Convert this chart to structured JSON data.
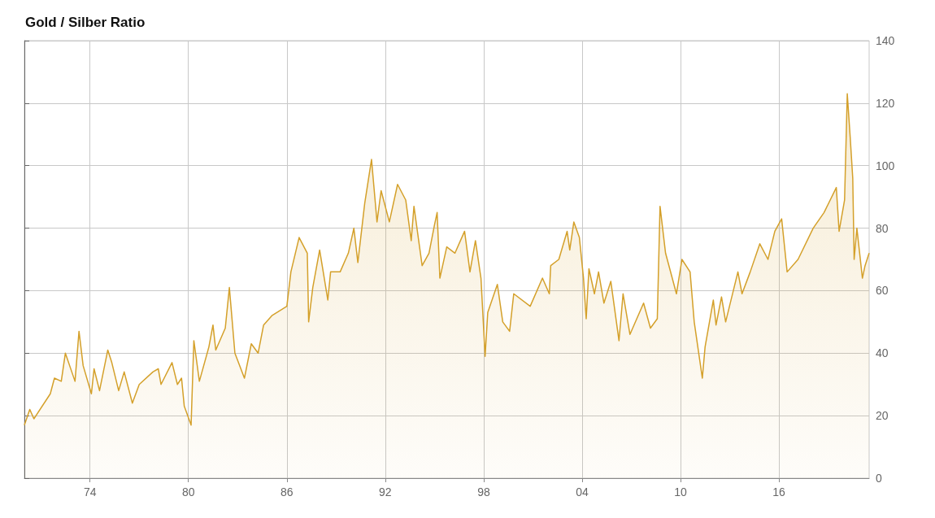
{
  "chart_data": {
    "type": "area",
    "title": "Gold / Silber Ratio",
    "x": [
      "1970-01",
      "1970-05",
      "1970-08",
      "1971-08",
      "1971-11",
      "1972-04",
      "1972-07",
      "1973-02",
      "1973-05",
      "1973-08",
      "1974-02",
      "1974-04",
      "1974-08",
      "1975-02",
      "1975-05",
      "1975-10",
      "1976-02",
      "1976-08",
      "1977-01",
      "1977-11",
      "1978-03",
      "1978-05",
      "1979-01",
      "1979-05",
      "1979-08",
      "1979-10",
      "1980-03",
      "1980-05",
      "1980-09",
      "1981-04",
      "1981-07",
      "1981-09",
      "1982-04",
      "1982-07",
      "1982-11",
      "1983-06",
      "1983-11",
      "1984-04",
      "1984-08",
      "1985-02",
      "1986-01",
      "1986-04",
      "1986-10",
      "1987-04",
      "1987-05",
      "1987-08",
      "1988-01",
      "1988-07",
      "1988-09",
      "1989-04",
      "1989-10",
      "1990-02",
      "1990-05",
      "1990-10",
      "1991-03",
      "1991-07",
      "1991-10",
      "1992-04",
      "1992-10",
      "1993-04",
      "1993-08",
      "1993-10",
      "1994-04",
      "1994-09",
      "1995-01",
      "1995-03",
      "1995-05",
      "1995-10",
      "1996-04",
      "1996-11",
      "1997-03",
      "1997-07",
      "1997-11",
      "1998-02",
      "1998-04",
      "1998-11",
      "1999-03",
      "1999-08",
      "1999-11",
      "2000-11",
      "2001-08",
      "2002-01",
      "2002-02",
      "2002-08",
      "2003-02",
      "2003-04",
      "2003-07",
      "2003-11",
      "2004-02",
      "2004-04",
      "2004-06",
      "2004-10",
      "2005-01",
      "2005-05",
      "2005-10",
      "2006-04",
      "2006-07",
      "2006-12",
      "2007-10",
      "2008-03",
      "2008-08",
      "2008-10",
      "2009-02",
      "2009-10",
      "2010-02",
      "2010-08",
      "2010-11",
      "2011-05",
      "2011-07",
      "2012-01",
      "2012-03",
      "2012-07",
      "2012-10",
      "2013-07",
      "2013-10",
      "2014-04",
      "2014-11",
      "2015-05",
      "2015-10",
      "2016-03",
      "2016-07",
      "2017-03",
      "2018-02",
      "2018-10",
      "2019-07",
      "2019-09",
      "2020-01",
      "2020-03",
      "2020-05",
      "2020-07",
      "2020-08",
      "2020-10",
      "2021-02",
      "2021-04",
      "2021-07"
    ],
    "series": [
      {
        "color": "#d4a02a",
        "values": [
          17,
          22,
          19,
          27,
          32,
          31,
          40,
          31,
          47,
          36,
          27,
          35,
          28,
          41,
          37,
          28,
          34,
          24,
          30,
          34,
          35,
          30,
          37,
          30,
          32,
          23,
          17,
          44,
          31,
          42,
          49,
          41,
          48,
          61,
          40,
          32,
          43,
          40,
          49,
          52,
          55,
          66,
          77,
          72,
          50,
          61,
          73,
          57,
          66,
          66,
          72,
          80,
          69,
          88,
          102,
          82,
          92,
          82,
          94,
          89,
          76,
          87,
          68,
          72,
          81,
          85,
          64,
          74,
          72,
          79,
          66,
          76,
          64,
          39,
          53,
          62,
          50,
          47,
          59,
          55,
          64,
          59,
          68,
          70,
          79,
          73,
          82,
          77,
          64,
          51,
          67,
          59,
          66,
          56,
          63,
          44,
          59,
          46,
          56,
          48,
          51,
          87,
          72,
          59,
          70,
          66,
          50,
          32,
          42,
          57,
          49,
          58,
          50,
          66,
          59,
          66,
          75,
          70,
          79,
          83,
          66,
          70,
          80,
          85,
          93,
          79,
          89,
          123,
          110,
          96,
          70,
          80,
          64,
          68,
          72
        ]
      }
    ],
    "xlim": [
      "1970-01",
      "2021-07"
    ],
    "xticks": [
      {
        "value": "1974",
        "label": "74"
      },
      {
        "value": "1980",
        "label": "80"
      },
      {
        "value": "1986",
        "label": "86"
      },
      {
        "value": "1992",
        "label": "92"
      },
      {
        "value": "1998",
        "label": "98"
      },
      {
        "value": "2004",
        "label": "04"
      },
      {
        "value": "2010",
        "label": "10"
      },
      {
        "value": "2016",
        "label": "16"
      }
    ],
    "ylim": [
      0,
      140
    ],
    "yticks": [
      0,
      20,
      40,
      60,
      80,
      100,
      120,
      140
    ],
    "grid": true
  }
}
